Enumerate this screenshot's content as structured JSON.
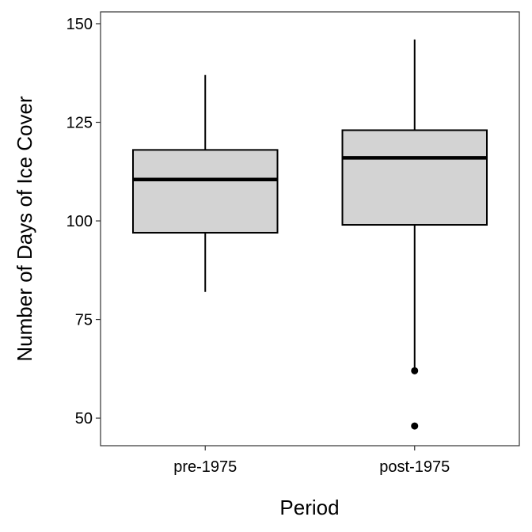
{
  "chart_data": {
    "type": "boxplot",
    "xlabel": "Period",
    "ylabel": "Number of Days of Ice Cover",
    "categories": [
      "pre-1975",
      "post-1975"
    ],
    "ylim": [
      43,
      153
    ],
    "yticks": [
      50,
      75,
      100,
      125,
      150
    ],
    "grid": false,
    "boxes": [
      {
        "category": "pre-1975",
        "whisker_low": 82,
        "q1": 97,
        "median": 110.5,
        "q3": 118,
        "whisker_high": 137,
        "outliers": []
      },
      {
        "category": "post-1975",
        "whisker_low": 62,
        "q1": 99,
        "median": 116,
        "q3": 123,
        "whisker_high": 146,
        "outliers": [
          62,
          48
        ]
      }
    ],
    "colors": {
      "box_fill": "#d3d3d3",
      "line": "#000000"
    }
  }
}
